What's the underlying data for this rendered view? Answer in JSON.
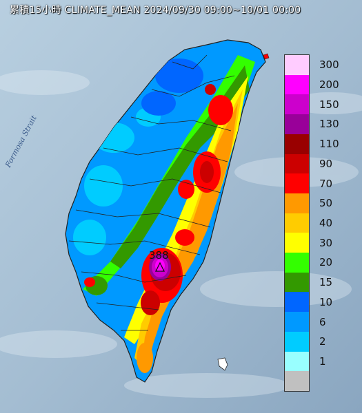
{
  "title": "累積15小時 CLIMATE_MEAN 2024/09/30 09:00~10/01 00:00",
  "sea_label": "Formosa Strait",
  "max_label": "388",
  "legend": [
    {
      "label": "300",
      "color": "#ffccff"
    },
    {
      "label": "200",
      "color": "#ff00ff"
    },
    {
      "label": "150",
      "color": "#cc00cc"
    },
    {
      "label": "130",
      "color": "#990099"
    },
    {
      "label": "110",
      "color": "#990000"
    },
    {
      "label": "90",
      "color": "#cc0000"
    },
    {
      "label": "70",
      "color": "#ff0000"
    },
    {
      "label": "50",
      "color": "#ff9900"
    },
    {
      "label": "40",
      "color": "#ffcc00"
    },
    {
      "label": "30",
      "color": "#ffff00"
    },
    {
      "label": "20",
      "color": "#33ff00"
    },
    {
      "label": "15",
      "color": "#339900"
    },
    {
      "label": "10",
      "color": "#0066ff"
    },
    {
      "label": "6",
      "color": "#0099ff"
    },
    {
      "label": "2",
      "color": "#00ccff"
    },
    {
      "label": "1",
      "color": "#99ffff"
    },
    {
      "label": "",
      "color": "#c0c0c0"
    }
  ]
}
